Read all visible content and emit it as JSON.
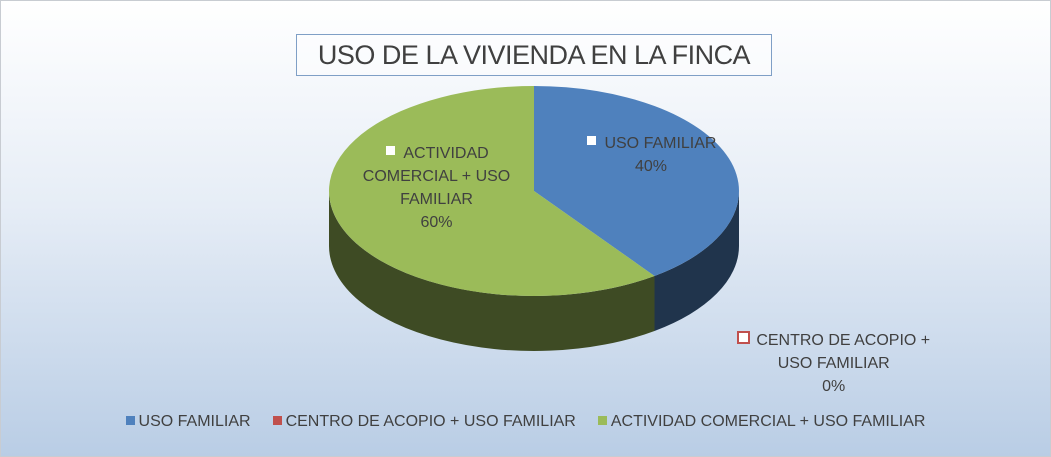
{
  "chart_data": {
    "type": "pie",
    "title": "USO DE LA VIVIENDA EN LA FINCA",
    "categories": [
      "USO FAMILIAR",
      "CENTRO DE ACOPIO + USO FAMILIAR",
      "ACTIVIDAD COMERCIAL + USO FAMILIAR"
    ],
    "values": [
      40,
      0,
      60
    ],
    "value_labels": [
      "40%",
      "0%",
      "60%"
    ],
    "colors": [
      "#4f81bd",
      "#c0504d",
      "#9bbb59"
    ],
    "legend": "bottom"
  }
}
